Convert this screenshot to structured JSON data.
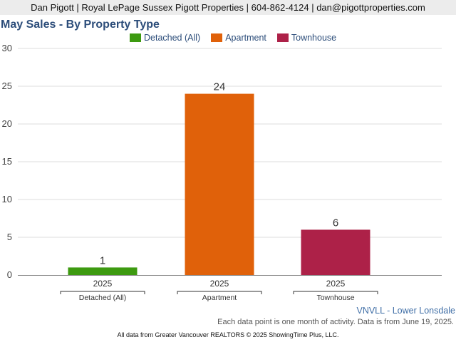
{
  "header": {
    "text": "Dan Pigott | Royal LePage Sussex Pigott Properties | 604-862-4124 | dan@pigottproperties.com"
  },
  "chart_data": {
    "type": "bar",
    "title": "May Sales - By Property Type",
    "categories": [
      "Detached (All)",
      "Apartment",
      "Townhouse"
    ],
    "x_tick_labels": [
      "2025",
      "2025",
      "2025"
    ],
    "values": [
      1,
      24,
      6
    ],
    "colors": [
      "#3d9a10",
      "#e0610a",
      "#ad2148"
    ],
    "ylim": [
      0,
      30
    ],
    "y_ticks": [
      0,
      5,
      10,
      15,
      20,
      25,
      30
    ],
    "grid": true,
    "legend_position": "top-center",
    "xlabel": "",
    "ylabel": ""
  },
  "area_label": "VNVLL - Lower Lonsdale",
  "note": "Each data point is one month of activity. Data is from June 19, 2025.",
  "footer": "All data from Greater Vancouver REALTORS © 2025 ShowingTime Plus, LLC."
}
